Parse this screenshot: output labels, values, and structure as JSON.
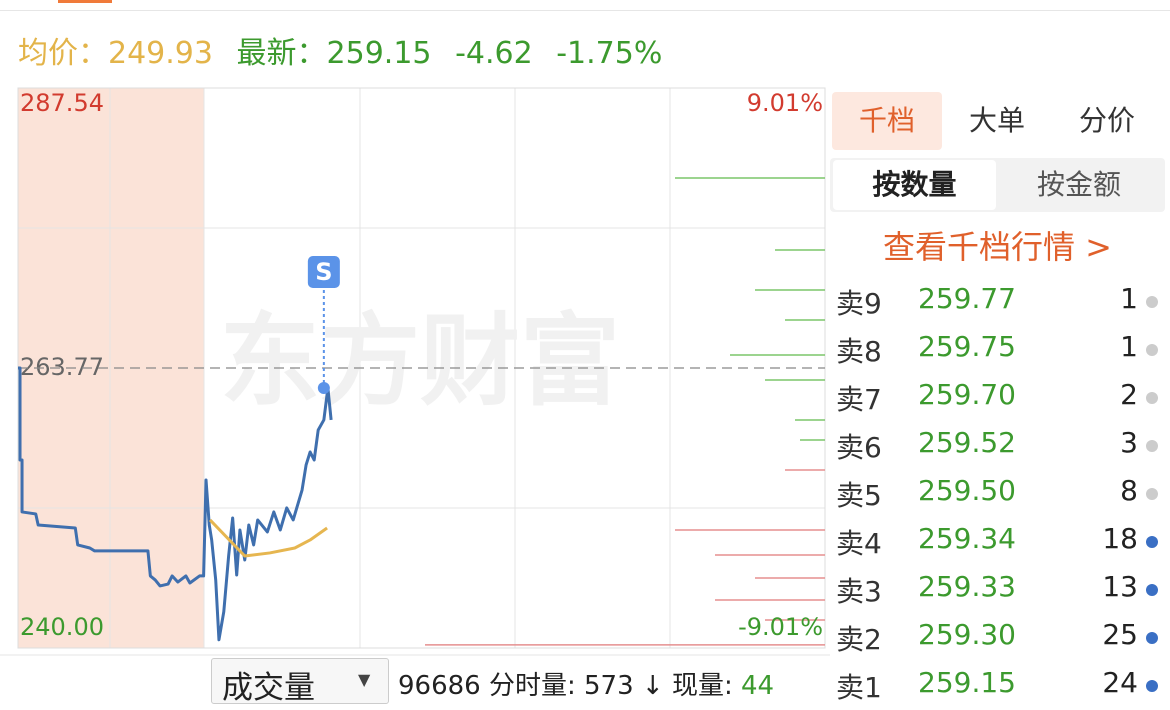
{
  "header": {
    "avg_label": "均价：",
    "avg": 249.93,
    "last_label": "最新：",
    "last": 259.15,
    "change": -4.62,
    "change_pct": "-1.75%"
  },
  "chart_data": {
    "type": "line",
    "watermark": "东方财富",
    "xlim": [
      0,
      100
    ],
    "ylim": [
      240,
      287.54
    ],
    "yticks": [
      287.54,
      263.77,
      {
        "value": 240,
        "label": "240.00"
      }
    ],
    "y2lim": [
      -9.01,
      9.01
    ],
    "y2ticks": [
      {
        "value": 9.01,
        "label": "9.01%"
      },
      {
        "value": -9.01,
        "label": "-9.01%"
      }
    ],
    "signal": {
      "label": "S",
      "x": 37.9,
      "y": 262.07,
      "color": "#5b93e8"
    },
    "series": [
      {
        "color": "#3f6fae",
        "x": [
          0,
          0.25,
          0.25,
          0.5,
          0.5,
          2.2,
          2.5,
          7.1,
          7.4,
          8.9,
          9.5,
          16.1,
          16.4,
          17.0,
          17.6,
          18.6,
          19.1,
          19.8,
          20.8,
          21.3,
          22.5,
          23.0,
          23.3,
          23.7,
          24.0,
          24.5,
          24.9,
          25.5,
          26.1,
          26.6,
          27.1,
          27.5,
          28.1,
          28.6,
          29.2,
          29.7,
          30.9,
          31.7,
          32.5,
          33.3,
          34.1,
          35.2,
          35.7,
          36.2,
          36.7,
          37.2,
          37.9,
          38.4,
          38.8
        ],
        "values": [
          263.77,
          263.77,
          255.96,
          255.96,
          251.55,
          251.38,
          250.44,
          250.19,
          248.75,
          248.49,
          248.24,
          248.24,
          246.12,
          245.78,
          245.27,
          245.43,
          246.12,
          245.6,
          246.12,
          245.52,
          246.12,
          246.12,
          254.26,
          250.44,
          249.17,
          245.78,
          240.7,
          243.08,
          247.81,
          251.04,
          246.2,
          250.02,
          247.47,
          250.44,
          248.75,
          250.87,
          249.85,
          251.55,
          250.02,
          251.89,
          250.87,
          253.41,
          255.54,
          256.64,
          255.96,
          258.51,
          259.36,
          262.07,
          259.36
        ]
      },
      {
        "color": "#e6b650",
        "x": [
          23.8,
          28.1,
          31.2,
          34.3,
          36.2,
          38.3
        ],
        "values": [
          250.87,
          247.81,
          248.07,
          248.49,
          249.17,
          250.19
        ]
      }
    ],
    "profile_up": {
      "color": "#7cc56a",
      "prices": [
        279.9,
        273.79,
        270.39,
        267.85,
        264.87,
        262.75,
        259.36,
        257.66
      ],
      "values": [
        150,
        50,
        70,
        40,
        95,
        60,
        30,
        25
      ]
    },
    "profile_down": {
      "color": "#e58f8f",
      "prices": [
        255.11,
        250.02,
        247.9,
        245.94,
        244.08,
        242.38,
        240.26
      ],
      "values": [
        40,
        150,
        110,
        70,
        110,
        60,
        400
      ]
    }
  },
  "panel": {
    "tabs": [
      "千档",
      "大单",
      "分价"
    ],
    "toggles": [
      "按数量",
      "按金额"
    ],
    "link": "查看千档行情 >",
    "rows": [
      {
        "label": "卖9",
        "price": "259.77",
        "qty": 1,
        "dot": "#cccccc"
      },
      {
        "label": "卖8",
        "price": "259.75",
        "qty": 1,
        "dot": "#cccccc"
      },
      {
        "label": "卖7",
        "price": "259.70",
        "qty": 2,
        "dot": "#cccccc"
      },
      {
        "label": "卖6",
        "price": "259.52",
        "qty": 3,
        "dot": "#cccccc"
      },
      {
        "label": "卖5",
        "price": "259.50",
        "qty": 8,
        "dot": "#cccccc"
      },
      {
        "label": "卖4",
        "price": "259.34",
        "qty": 18,
        "dot": "#3a6fc4"
      },
      {
        "label": "卖3",
        "price": "259.33",
        "qty": 13,
        "dot": "#3a6fc4"
      },
      {
        "label": "卖2",
        "price": "259.30",
        "qty": 25,
        "dot": "#3a6fc4"
      },
      {
        "label": "卖1",
        "price": "259.15",
        "qty": 24,
        "dot": "#3a6fc4"
      }
    ]
  },
  "footer": {
    "selector": "成交量",
    "volume": 96686,
    "period_label": "分时量:",
    "period": 573,
    "arrow": "↓",
    "now_label": "现量:",
    "now": 44
  }
}
